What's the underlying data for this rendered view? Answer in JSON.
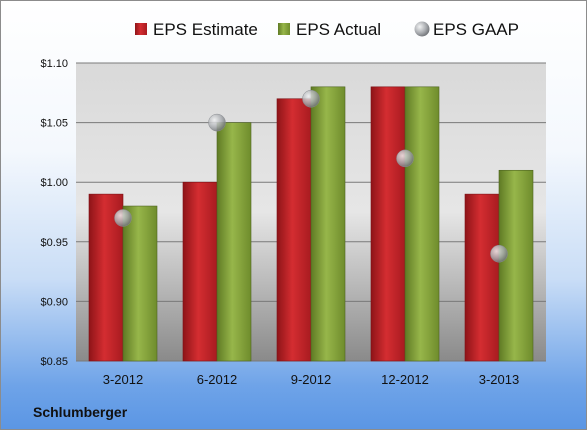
{
  "chart_data": {
    "type": "bar",
    "categories": [
      "3-2012",
      "6-2012",
      "9-2012",
      "12-2012",
      "3-2013"
    ],
    "series": [
      {
        "name": "EPS Estimate",
        "kind": "bar",
        "color": "#c0262b",
        "values": [
          0.99,
          1.0,
          1.07,
          1.08,
          0.99
        ]
      },
      {
        "name": "EPS Actual",
        "kind": "bar",
        "color": "#86a33c",
        "values": [
          0.98,
          1.05,
          1.08,
          1.08,
          1.01
        ]
      },
      {
        "name": "EPS GAAP",
        "kind": "marker",
        "color": "#a9acb0",
        "values": [
          0.97,
          1.05,
          1.07,
          1.02,
          0.94
        ]
      }
    ],
    "ylim": [
      0.85,
      1.1
    ],
    "yticks": [
      0.85,
      0.9,
      0.95,
      1.0,
      1.05,
      1.1
    ],
    "ytick_labels": [
      "$0.85",
      "$0.90",
      "$0.95",
      "$1.00",
      "$1.05",
      "$1.10"
    ],
    "grid": true,
    "legend_position": "top"
  },
  "company": "Schlumberger"
}
